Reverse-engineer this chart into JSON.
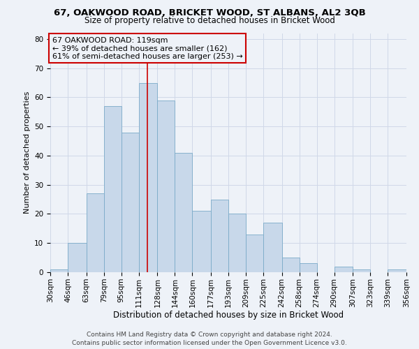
{
  "title": "67, OAKWOOD ROAD, BRICKET WOOD, ST ALBANS, AL2 3QB",
  "subtitle": "Size of property relative to detached houses in Bricket Wood",
  "xlabel": "Distribution of detached houses by size in Bricket Wood",
  "ylabel": "Number of detached properties",
  "bin_edges": [
    30,
    46,
    63,
    79,
    95,
    111,
    128,
    144,
    160,
    177,
    193,
    209,
    225,
    242,
    258,
    274,
    290,
    307,
    323,
    339,
    356
  ],
  "bar_heights": [
    1,
    10,
    27,
    57,
    48,
    65,
    59,
    41,
    21,
    25,
    20,
    13,
    17,
    5,
    3,
    0,
    2,
    1,
    0,
    1
  ],
  "bar_color": "#c8d8ea",
  "bar_edgecolor": "#7aaac8",
  "property_size": 119,
  "red_line_color": "#cc0000",
  "annotation_line1": "67 OAKWOOD ROAD: 119sqm",
  "annotation_line2": "← 39% of detached houses are smaller (162)",
  "annotation_line3": "61% of semi-detached houses are larger (253) →",
  "annotation_box_edgecolor": "#cc0000",
  "ylim": [
    0,
    82
  ],
  "yticks": [
    0,
    10,
    20,
    30,
    40,
    50,
    60,
    70,
    80
  ],
  "grid_color": "#d0d8e8",
  "bg_color": "#eef2f8",
  "footer_line1": "Contains HM Land Registry data © Crown copyright and database right 2024.",
  "footer_line2": "Contains public sector information licensed under the Open Government Licence v3.0.",
  "title_fontsize": 9.5,
  "subtitle_fontsize": 8.5,
  "xlabel_fontsize": 8.5,
  "ylabel_fontsize": 8,
  "tick_fontsize": 7.5,
  "annotation_fontsize": 8,
  "footer_fontsize": 6.5
}
